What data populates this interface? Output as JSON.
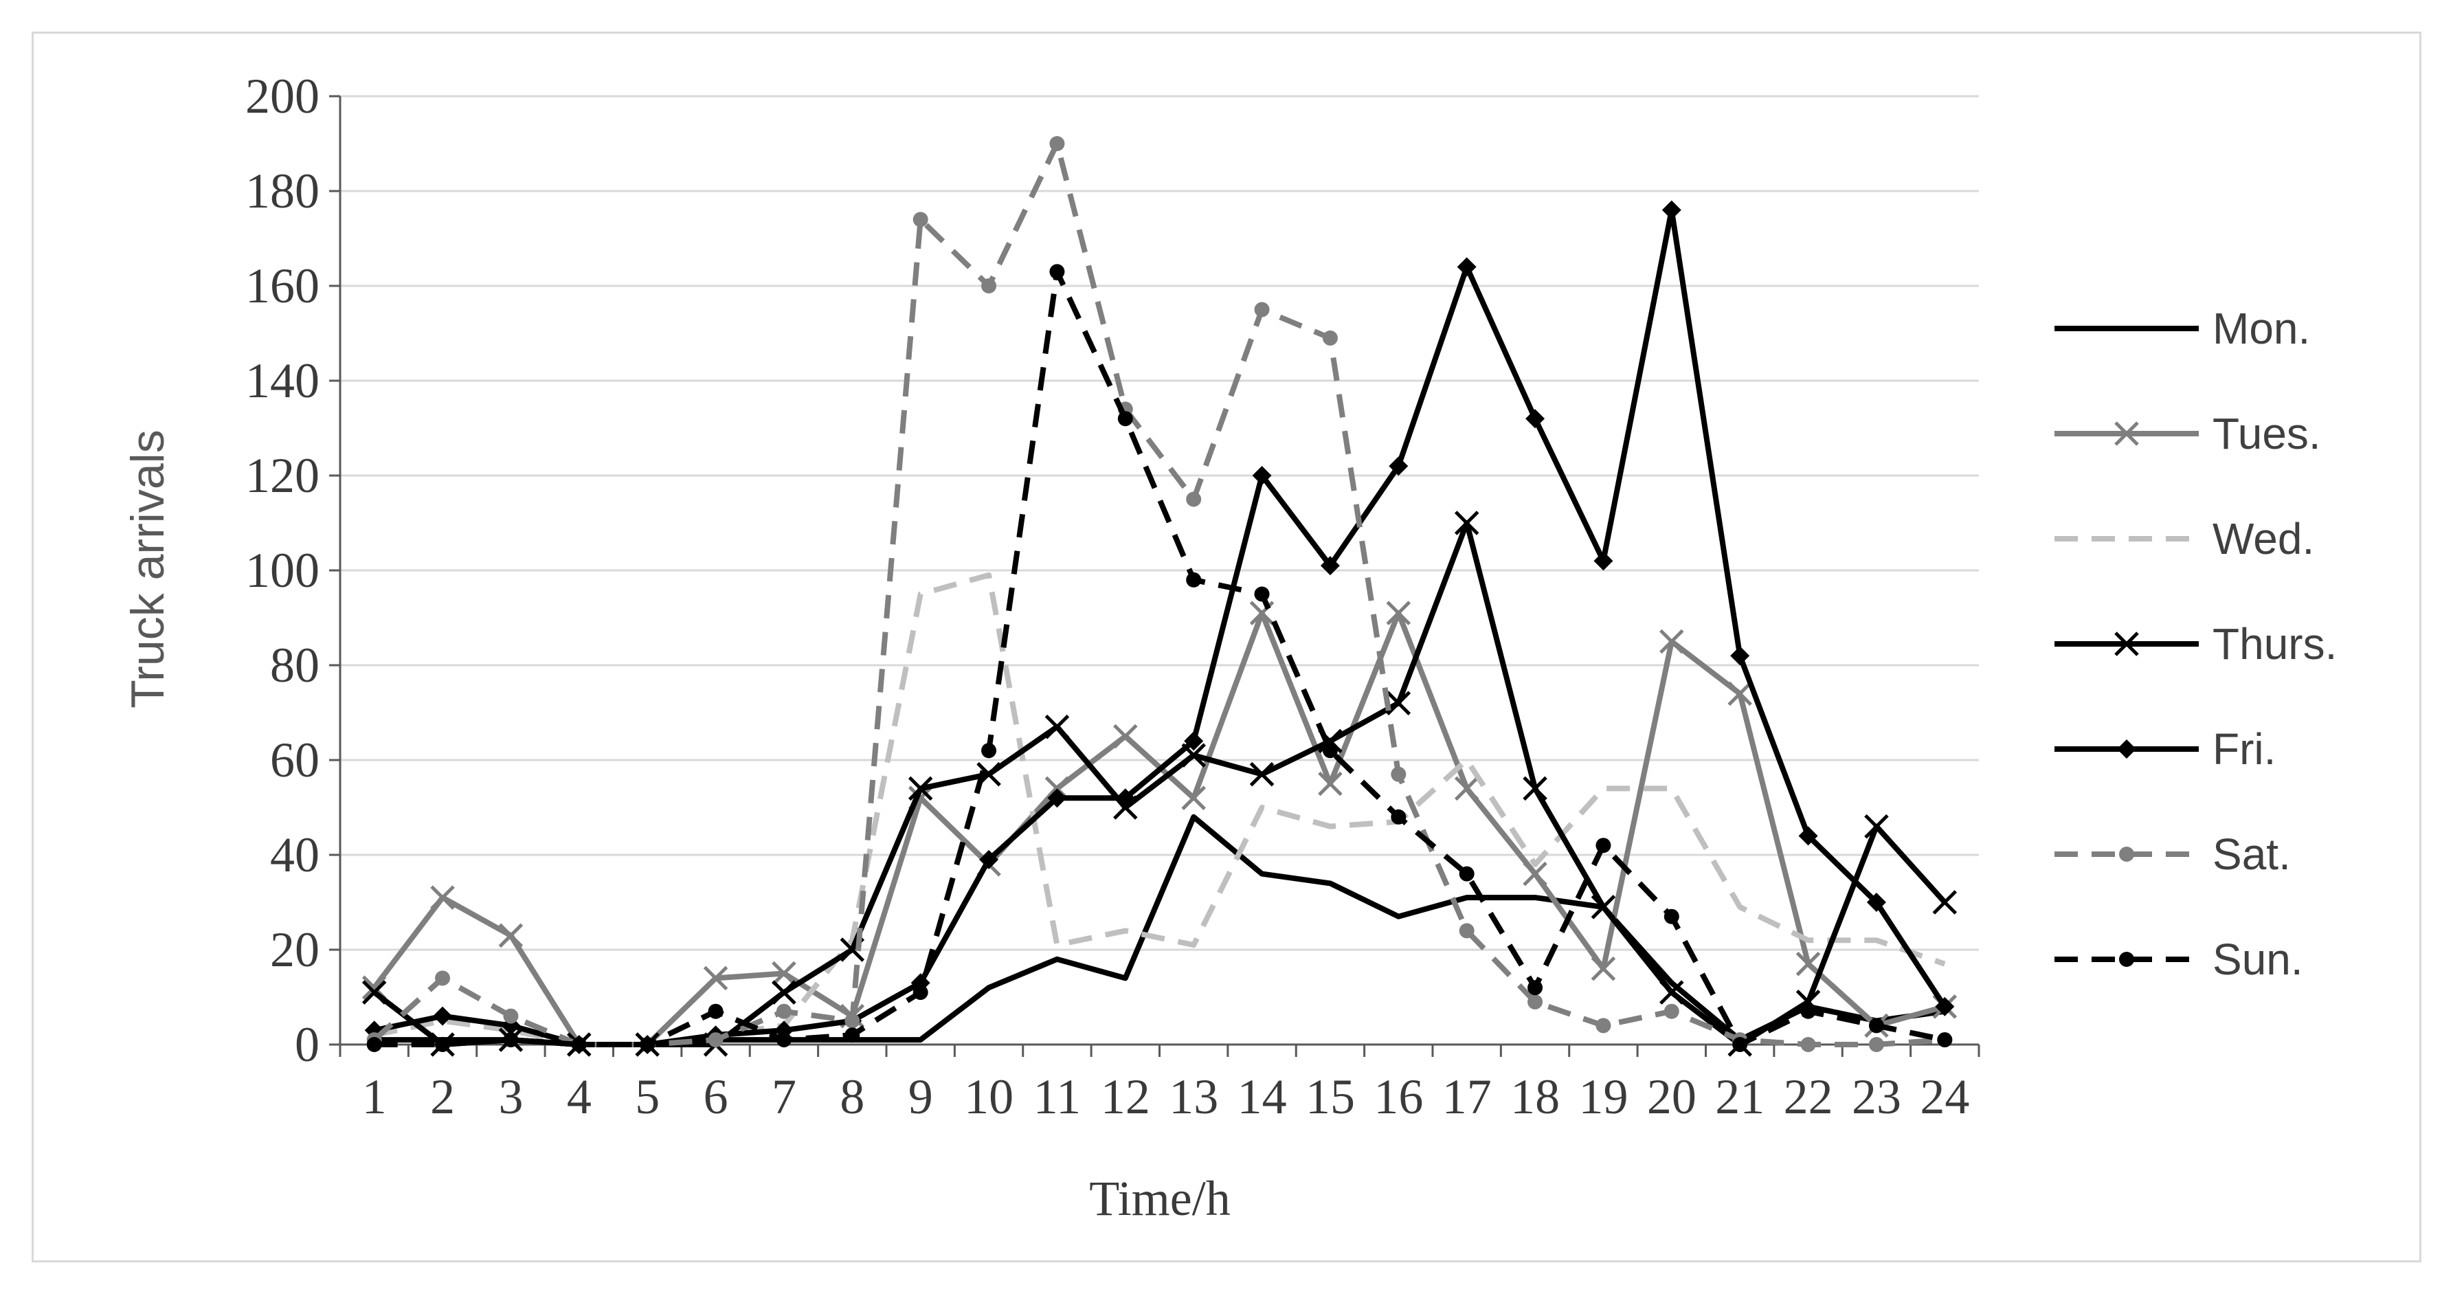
{
  "chart_data": {
    "type": "line",
    "xlabel": "Time/h",
    "ylabel": "Truck arrivals",
    "ylim": [
      0,
      200
    ],
    "yticks": [
      0,
      20,
      40,
      60,
      80,
      100,
      120,
      140,
      160,
      180,
      200
    ],
    "categories": [
      "1",
      "2",
      "3",
      "4",
      "5",
      "6",
      "7",
      "8",
      "9",
      "10",
      "11",
      "12",
      "13",
      "14",
      "15",
      "16",
      "17",
      "18",
      "19",
      "20",
      "21",
      "22",
      "23",
      "24"
    ],
    "grid": "horizontal",
    "legend_position": "right",
    "series": [
      {
        "name": "Mon.",
        "color": "#000000",
        "dash": "solid",
        "marker": "none",
        "values": [
          1,
          1,
          1,
          0,
          0,
          1,
          1,
          1,
          1,
          12,
          18,
          14,
          48,
          36,
          34,
          27,
          31,
          31,
          29,
          13,
          1,
          8,
          5,
          7
        ]
      },
      {
        "name": "Tues.",
        "color": "#7f7f7f",
        "dash": "solid",
        "marker": "x",
        "values": [
          12,
          31,
          23,
          0,
          0,
          14,
          15,
          6,
          52,
          38,
          54,
          65,
          52,
          91,
          55,
          91,
          54,
          36,
          16,
          85,
          74,
          17,
          4,
          8
        ]
      },
      {
        "name": "Wed.",
        "color": "#bfbfbf",
        "dash": "dash",
        "marker": "none",
        "values": [
          2,
          5,
          3,
          0,
          0,
          2,
          4,
          22,
          95,
          99,
          21,
          24,
          21,
          50,
          46,
          47,
          60,
          38,
          54,
          54,
          29,
          22,
          22,
          17
        ]
      },
      {
        "name": "Thurs.",
        "color": "#000000",
        "dash": "solid",
        "marker": "x",
        "values": [
          11,
          0,
          1,
          0,
          0,
          0,
          11,
          20,
          54,
          57,
          67,
          50,
          61,
          57,
          64,
          72,
          110,
          54,
          29,
          11,
          0,
          9,
          46,
          30
        ]
      },
      {
        "name": "Fri.",
        "color": "#000000",
        "dash": "solid",
        "marker": "diamond",
        "values": [
          3,
          6,
          4,
          0,
          0,
          2,
          3,
          5,
          13,
          39,
          52,
          52,
          64,
          120,
          101,
          122,
          164,
          132,
          102,
          176,
          82,
          44,
          30,
          8
        ]
      },
      {
        "name": "Sat.",
        "color": "#7f7f7f",
        "dash": "dash",
        "marker": "dot",
        "values": [
          1,
          14,
          6,
          0,
          0,
          1,
          7,
          5,
          174,
          160,
          190,
          134,
          115,
          155,
          149,
          57,
          24,
          9,
          4,
          7,
          1,
          0,
          0,
          1
        ]
      },
      {
        "name": "Sun.",
        "color": "#000000",
        "dash": "dash",
        "marker": "dot",
        "values": [
          0,
          0,
          1,
          0,
          0,
          7,
          1,
          2,
          11,
          62,
          163,
          132,
          98,
          95,
          62,
          48,
          36,
          12,
          42,
          27,
          0,
          7,
          4,
          1
        ]
      }
    ]
  }
}
